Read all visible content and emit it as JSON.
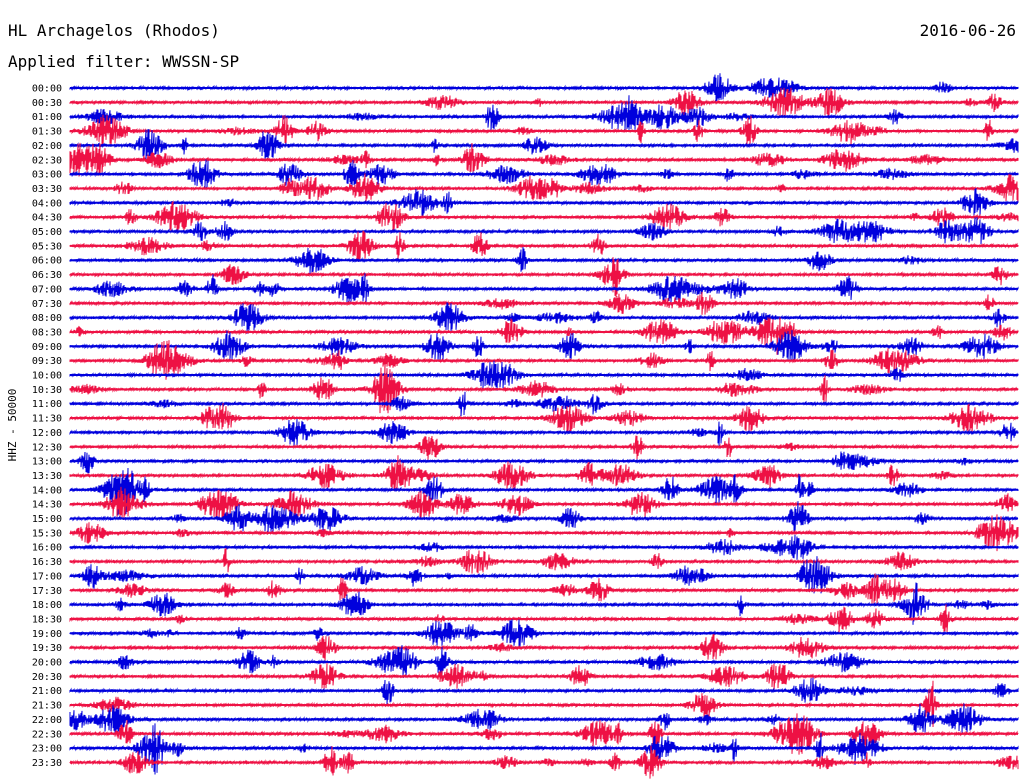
{
  "header": {
    "station": "HL Archagelos (Rhodos)",
    "date": "2016-06-26",
    "filter": "Applied filter: WWSSN-SP"
  },
  "chart_data": {
    "type": "line",
    "title": "HL Archagelos (Rhodos)",
    "ylabel": "HHZ - 50000",
    "time_labels": [
      "00:00",
      "00:30",
      "01:00",
      "01:30",
      "02:00",
      "02:30",
      "03:00",
      "03:30",
      "04:00",
      "04:30",
      "05:00",
      "05:30",
      "06:00",
      "06:30",
      "07:00",
      "07:30",
      "08:00",
      "08:30",
      "09:00",
      "09:30",
      "10:00",
      "10:30",
      "11:00",
      "11:30",
      "12:00",
      "12:30",
      "13:00",
      "13:30",
      "14:00",
      "14:30",
      "15:00",
      "15:30",
      "16:00",
      "16:30",
      "17:00",
      "17:30",
      "18:00",
      "18:30",
      "19:00",
      "19:30",
      "20:00",
      "20:30",
      "21:00",
      "21:30",
      "22:00",
      "22:30",
      "23:00",
      "23:30"
    ],
    "series_colors": [
      "#0000dd",
      "#ee1144"
    ],
    "grid": false
  }
}
